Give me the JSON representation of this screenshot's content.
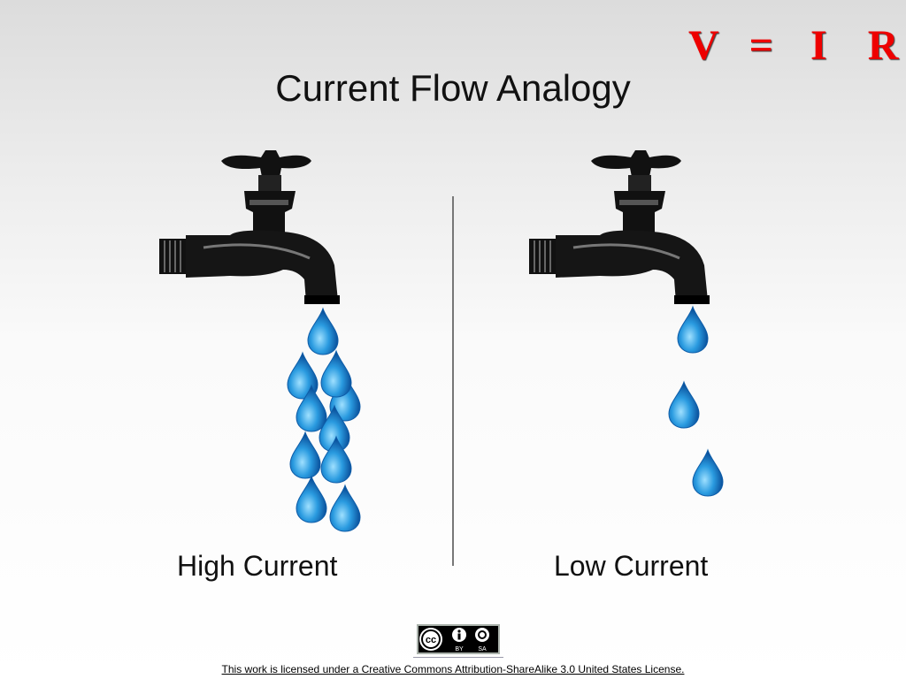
{
  "slide": {
    "title": "Current Flow Analogy",
    "logo": {
      "v": "V",
      "eq": "=",
      "i": "I",
      "r": "R",
      "color": "#e00000"
    },
    "left_label": "High Current",
    "right_label": "Low Current",
    "license_badge": {
      "cc": "cc",
      "by": "BY",
      "sa": "SA"
    },
    "license_text": "This work is licensed under a Creative Commons Attribution-ShareAlike 3.0 United States License.",
    "drop_color": "#1a8fdc"
  }
}
